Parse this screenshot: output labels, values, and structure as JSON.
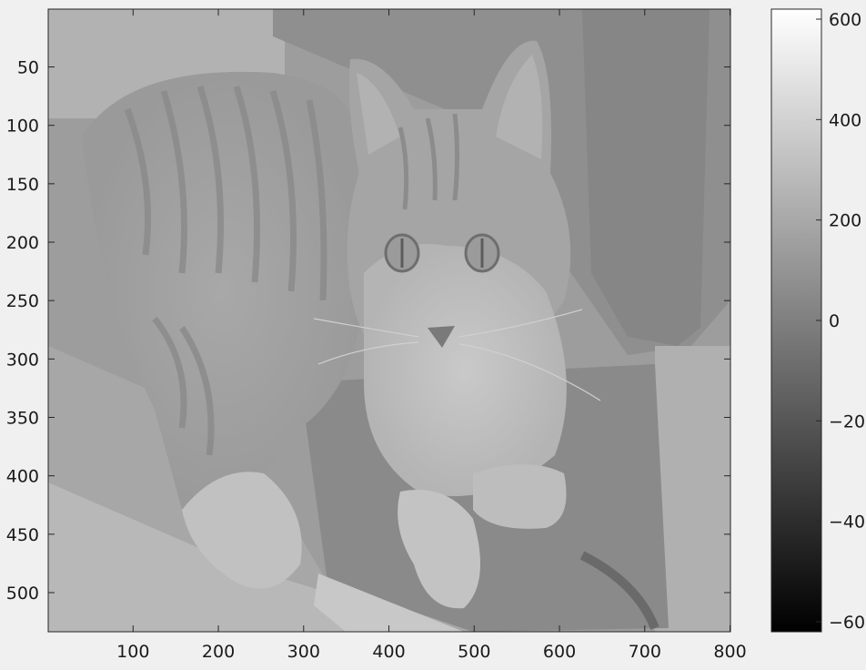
{
  "chart_data": {
    "type": "heatmap",
    "title": "",
    "xlabel": "",
    "ylabel": "",
    "image_description_note": "",
    "xlim": [
      1,
      800
    ],
    "ylim": [
      1,
      533
    ],
    "y_reversed": true,
    "x_ticks": [
      100,
      200,
      300,
      400,
      500,
      600,
      700,
      800
    ],
    "x_tick_labels": [
      "100",
      "200",
      "300",
      "400",
      "500",
      "600",
      "700",
      "800"
    ],
    "y_ticks": [
      50,
      100,
      150,
      200,
      250,
      300,
      350,
      400,
      450,
      500
    ],
    "y_tick_labels": [
      "50",
      "100",
      "150",
      "200",
      "250",
      "300",
      "350",
      "400",
      "450",
      "500"
    ],
    "colormap": "gray",
    "clim": [
      -620,
      620
    ],
    "colorbar_ticks": [
      600,
      400,
      200,
      0,
      -200,
      -400,
      -600
    ],
    "colorbar_tick_labels": [
      "600",
      "400",
      "200",
      "0",
      "−200",
      "−400",
      "−600"
    ],
    "image_value_range_approx": [
      -100,
      250
    ]
  },
  "colors": {
    "background": "#f0f0f0",
    "axes": "#262626",
    "colormap_low": "#000000",
    "colormap_high": "#ffffff"
  }
}
